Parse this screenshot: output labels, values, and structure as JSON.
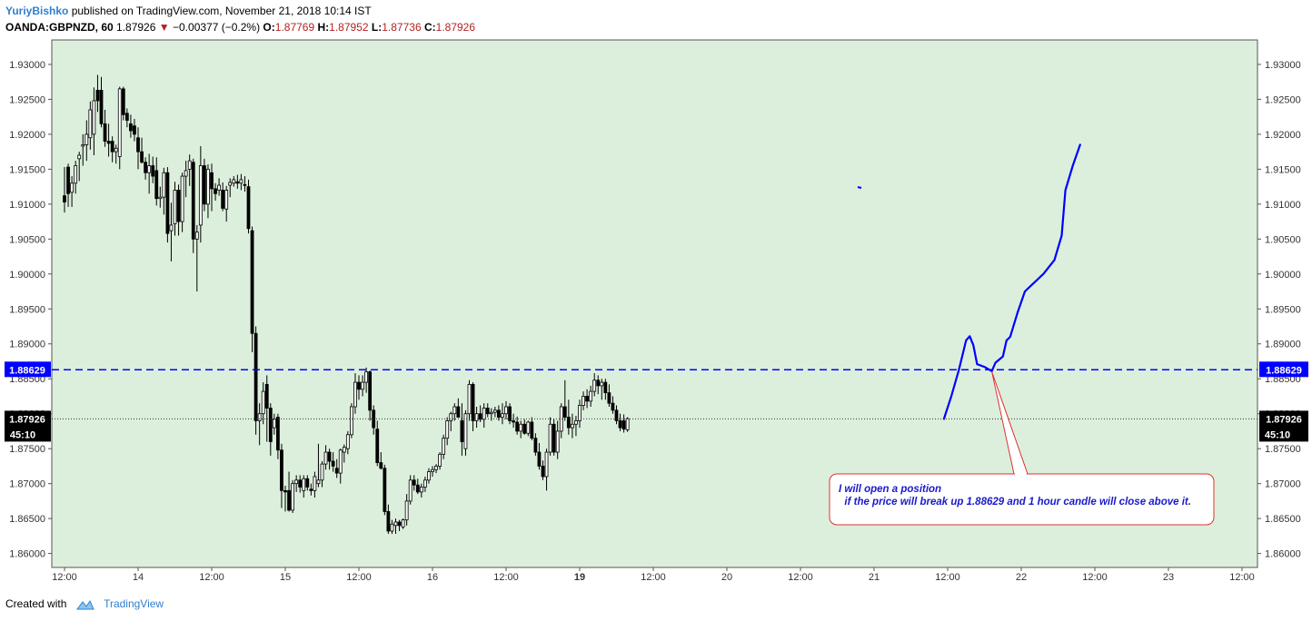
{
  "header": {
    "author": "YuriyBishko",
    "published_text": "published on TradingView.com, November 21, 2018 10:14 IST",
    "symbol": "OANDA:GBPNZD, 60",
    "last": "1.87926",
    "change": "−0.00377 (−0.2%)",
    "o_label": "O:",
    "o": "1.87769",
    "h_label": "H:",
    "h": "1.87952",
    "l_label": "L:",
    "l": "1.87736",
    "c_label": "C:",
    "c": "1.87926"
  },
  "footer": {
    "created_with": "Created with",
    "brand": "TradingView"
  },
  "colors": {
    "plot_bg": "#dcefdc",
    "level_line": "#0000ff",
    "price_tag": "#000000",
    "level_tag": "#0000ff",
    "arrow": "#e03030",
    "note_text": "#1a1acc"
  },
  "chart_data": {
    "type": "candlestick",
    "ylim": [
      1.858,
      1.9335
    ],
    "y_ticks": [
      "1.93000",
      "1.92500",
      "1.92000",
      "1.91500",
      "1.91000",
      "1.90500",
      "1.90000",
      "1.89500",
      "1.89000",
      "1.88500",
      "1.88000",
      "1.87500",
      "1.87000",
      "1.86500",
      "1.86000"
    ],
    "y_tick_values": [
      1.93,
      1.925,
      1.92,
      1.915,
      1.91,
      1.905,
      1.9,
      1.895,
      1.89,
      1.885,
      1.88,
      1.875,
      1.87,
      1.865,
      1.86
    ],
    "x_ticks": [
      "12:00",
      "14",
      "12:00",
      "15",
      "12:00",
      "16",
      "12:00",
      "19",
      "12:00",
      "20",
      "12:00",
      "21",
      "12:00",
      "22",
      "12:00",
      "23",
      "12:00"
    ],
    "x_tick_bars": [
      0,
      20,
      40,
      60,
      80,
      100,
      120,
      140,
      160,
      180,
      200,
      220,
      240,
      260,
      280,
      300,
      320
    ],
    "bold_x_ticks": [
      "19"
    ],
    "level": {
      "value": 1.88629,
      "label": "1.88629",
      "style": "dashed"
    },
    "current_price": {
      "value": 1.87926,
      "label": "1.87926",
      "countdown": "45:10",
      "style": "dotted"
    },
    "annotation": "I will open a position\n  if the price will break up 1.88629 and 1 hour candle will close above it.",
    "projection_path": [
      [
        239,
        1.87926
      ],
      [
        241,
        1.8825
      ],
      [
        243,
        1.8862
      ],
      [
        245,
        1.8905
      ],
      [
        246,
        1.8911
      ],
      [
        247,
        1.8898
      ],
      [
        248,
        1.8871
      ],
      [
        250,
        1.8867
      ],
      [
        252,
        1.8861
      ],
      [
        253,
        1.8873
      ],
      [
        255,
        1.8882
      ],
      [
        256,
        1.8905
      ],
      [
        257,
        1.891
      ],
      [
        259,
        1.8945
      ],
      [
        261,
        1.8975
      ],
      [
        263,
        1.8985
      ],
      [
        266,
        1.9
      ],
      [
        269,
        1.902
      ],
      [
        271,
        1.9055
      ],
      [
        272,
        1.912
      ],
      [
        274,
        1.9155
      ],
      [
        276,
        1.9185
      ]
    ],
    "candles": [
      [
        1.9112,
        1.9153,
        1.9088,
        1.9103
      ],
      [
        1.9153,
        1.9158,
        1.9096,
        1.9115
      ],
      [
        1.9117,
        1.914,
        1.9096,
        1.913
      ],
      [
        1.913,
        1.9162,
        1.9115,
        1.9155
      ],
      [
        1.9165,
        1.9175,
        1.9133,
        1.917
      ],
      [
        1.9183,
        1.92,
        1.9155,
        1.9185
      ],
      [
        1.9185,
        1.922,
        1.9162,
        1.92
      ],
      [
        1.9195,
        1.9247,
        1.9178,
        1.9235
      ],
      [
        1.92,
        1.9267,
        1.917,
        1.9248
      ],
      [
        1.9263,
        1.9285,
        1.9232,
        1.9248
      ],
      [
        1.9263,
        1.9282,
        1.921,
        1.9215
      ],
      [
        1.9215,
        1.9235,
        1.9182,
        1.919
      ],
      [
        1.919,
        1.9215,
        1.9168,
        1.9187
      ],
      [
        1.919,
        1.9197,
        1.916,
        1.9175
      ],
      [
        1.9175,
        1.9185,
        1.9158,
        1.918
      ],
      [
        1.9168,
        1.9268,
        1.915,
        1.9265
      ],
      [
        1.9265,
        1.9268,
        1.922,
        1.9228
      ],
      [
        1.923,
        1.9237,
        1.921,
        1.922
      ],
      [
        1.9215,
        1.9228,
        1.9195,
        1.9205
      ],
      [
        1.9212,
        1.9222,
        1.919,
        1.92
      ],
      [
        1.9195,
        1.921,
        1.915,
        1.9175
      ],
      [
        1.9175,
        1.9195,
        1.9158,
        1.916
      ],
      [
        1.916,
        1.9167,
        1.9135,
        1.9145
      ],
      [
        1.9145,
        1.9172,
        1.9115,
        1.9155
      ],
      [
        1.9155,
        1.9168,
        1.913,
        1.914
      ],
      [
        1.9148,
        1.9167,
        1.9098,
        1.9108
      ],
      [
        1.9108,
        1.9125,
        1.9095,
        1.911
      ],
      [
        1.911,
        1.9152,
        1.9085,
        1.9145
      ],
      [
        1.9145,
        1.9153,
        1.9045,
        1.9058
      ],
      [
        1.9062,
        1.9102,
        1.9018,
        1.907
      ],
      [
        1.9072,
        1.9132,
        1.9055,
        1.912
      ],
      [
        1.912,
        1.9128,
        1.9055,
        1.9075
      ],
      [
        1.9075,
        1.9145,
        1.906,
        1.914
      ],
      [
        1.914,
        1.9162,
        1.911,
        1.9148
      ],
      [
        1.915,
        1.9171,
        1.9126,
        1.9162
      ],
      [
        1.916,
        1.9165,
        1.903,
        1.905
      ],
      [
        1.905,
        1.907,
        1.8975,
        1.906
      ],
      [
        1.907,
        1.9183,
        1.9045,
        1.9155
      ],
      [
        1.9155,
        1.9165,
        1.909,
        1.91
      ],
      [
        1.91,
        1.9157,
        1.908,
        1.915
      ],
      [
        1.9145,
        1.9158,
        1.909,
        1.9122
      ],
      [
        1.9122,
        1.913,
        1.9105,
        1.9115
      ],
      [
        1.912,
        1.9137,
        1.9112,
        1.9127
      ],
      [
        1.912,
        1.9131,
        1.909,
        1.9094
      ],
      [
        1.9093,
        1.9126,
        1.9075,
        1.912
      ],
      [
        1.9127,
        1.9137,
        1.911,
        1.9131
      ],
      [
        1.913,
        1.914,
        1.9125,
        1.9135
      ],
      [
        1.9132,
        1.9142,
        1.9122,
        1.913
      ],
      [
        1.913,
        1.9143,
        1.912,
        1.9135
      ],
      [
        1.9128,
        1.914,
        1.9118,
        1.9127
      ],
      [
        1.9125,
        1.9135,
        1.9058,
        1.9065
      ],
      [
        1.9062,
        1.9068,
        1.8888,
        1.8915
      ],
      [
        1.8915,
        1.8925,
        1.877,
        1.879
      ],
      [
        1.879,
        1.8815,
        1.8755,
        1.88
      ],
      [
        1.88,
        1.8845,
        1.8785,
        1.8832
      ],
      [
        1.8842,
        1.8855,
        1.876,
        1.8808
      ],
      [
        1.8808,
        1.8815,
        1.874,
        1.876
      ],
      [
        1.878,
        1.88,
        1.877,
        1.8792
      ],
      [
        1.8795,
        1.88,
        1.8735,
        1.8748
      ],
      [
        1.8748,
        1.8757,
        1.8665,
        1.869
      ],
      [
        1.869,
        1.8697,
        1.866,
        1.8688
      ],
      [
        1.869,
        1.8717,
        1.866,
        1.8662
      ],
      [
        1.8662,
        1.8705,
        1.8658,
        1.87
      ],
      [
        1.87,
        1.8712,
        1.8688,
        1.8705
      ],
      [
        1.8705,
        1.8712,
        1.8687,
        1.8695
      ],
      [
        1.869,
        1.8712,
        1.868,
        1.8707
      ],
      [
        1.8707,
        1.8712,
        1.869,
        1.8695
      ],
      [
        1.8692,
        1.87,
        1.8683,
        1.869
      ],
      [
        1.869,
        1.8717,
        1.868,
        1.871
      ],
      [
        1.87,
        1.8757,
        1.8695,
        1.8705
      ],
      [
        1.8705,
        1.8732,
        1.8695,
        1.8728
      ],
      [
        1.8728,
        1.8755,
        1.872,
        1.8745
      ],
      [
        1.8745,
        1.875,
        1.872,
        1.8732
      ],
      [
        1.8732,
        1.8745,
        1.8717,
        1.8725
      ],
      [
        1.8722,
        1.8735,
        1.8708,
        1.8715
      ],
      [
        1.8715,
        1.875,
        1.87,
        1.8748
      ],
      [
        1.8745,
        1.8756,
        1.873,
        1.8752
      ],
      [
        1.875,
        1.8775,
        1.8742,
        1.877
      ],
      [
        1.877,
        1.8815,
        1.8765,
        1.881
      ],
      [
        1.881,
        1.8858,
        1.88,
        1.8845
      ],
      [
        1.8845,
        1.8855,
        1.882,
        1.8835
      ],
      [
        1.8835,
        1.8855,
        1.8825,
        1.8845
      ],
      [
        1.8845,
        1.8866,
        1.883,
        1.886
      ],
      [
        1.886,
        1.8862,
        1.879,
        1.8805
      ],
      [
        1.8805,
        1.8812,
        1.877,
        1.878
      ],
      [
        1.8778,
        1.879,
        1.8725,
        1.873
      ],
      [
        1.873,
        1.8745,
        1.872,
        1.8722
      ],
      [
        1.8722,
        1.8727,
        1.8655,
        1.866
      ],
      [
        1.866,
        1.867,
        1.8628,
        1.8632
      ],
      [
        1.8632,
        1.8648,
        1.8628,
        1.8642
      ],
      [
        1.864,
        1.865,
        1.8628,
        1.8645
      ],
      [
        1.8645,
        1.8648,
        1.8632,
        1.864
      ],
      [
        1.8638,
        1.865,
        1.8635,
        1.8648
      ],
      [
        1.8648,
        1.8685,
        1.864,
        1.8675
      ],
      [
        1.8675,
        1.8712,
        1.867,
        1.8705
      ],
      [
        1.8705,
        1.8712,
        1.869,
        1.8698
      ],
      [
        1.8698,
        1.8707,
        1.8685,
        1.8688
      ],
      [
        1.8688,
        1.87,
        1.868,
        1.8695
      ],
      [
        1.8695,
        1.871,
        1.8688,
        1.8705
      ],
      [
        1.8705,
        1.8722,
        1.87,
        1.8717
      ],
      [
        1.8717,
        1.8725,
        1.871,
        1.872
      ],
      [
        1.872,
        1.8728,
        1.8715,
        1.8725
      ],
      [
        1.8725,
        1.8745,
        1.872,
        1.8742
      ],
      [
        1.8742,
        1.877,
        1.8735,
        1.8765
      ],
      [
        1.8765,
        1.8795,
        1.8755,
        1.879
      ],
      [
        1.879,
        1.8803,
        1.8775,
        1.88
      ],
      [
        1.88,
        1.8815,
        1.879,
        1.881
      ],
      [
        1.881,
        1.8822,
        1.8795,
        1.8795
      ],
      [
        1.879,
        1.8815,
        1.874,
        1.876
      ],
      [
        1.875,
        1.8805,
        1.874,
        1.88
      ],
      [
        1.88,
        1.8848,
        1.879,
        1.8842
      ],
      [
        1.8842,
        1.8845,
        1.8775,
        1.879
      ],
      [
        1.879,
        1.881,
        1.878,
        1.88
      ],
      [
        1.88,
        1.8812,
        1.8788,
        1.8792
      ],
      [
        1.8792,
        1.8815,
        1.878,
        1.8808
      ],
      [
        1.8808,
        1.8815,
        1.8795,
        1.88
      ],
      [
        1.88,
        1.8808,
        1.879,
        1.8802
      ],
      [
        1.8802,
        1.881,
        1.8795,
        1.8805
      ],
      [
        1.8805,
        1.8812,
        1.879,
        1.8795
      ],
      [
        1.8795,
        1.8815,
        1.8785,
        1.88
      ],
      [
        1.88,
        1.8818,
        1.8792,
        1.881
      ],
      [
        1.881,
        1.8815,
        1.8785,
        1.879
      ],
      [
        1.879,
        1.88,
        1.878,
        1.8788
      ],
      [
        1.8788,
        1.8796,
        1.877,
        1.8775
      ],
      [
        1.8775,
        1.879,
        1.8765,
        1.8785
      ],
      [
        1.8785,
        1.8792,
        1.877,
        1.8772
      ],
      [
        1.8772,
        1.879,
        1.8768,
        1.8788
      ],
      [
        1.8788,
        1.8795,
        1.8762,
        1.8765
      ],
      [
        1.8765,
        1.8772,
        1.874,
        1.8745
      ],
      [
        1.8745,
        1.8758,
        1.872,
        1.8725
      ],
      [
        1.8725,
        1.8733,
        1.8705,
        1.871
      ],
      [
        1.871,
        1.875,
        1.869,
        1.8745
      ],
      [
        1.8745,
        1.8795,
        1.874,
        1.8785
      ],
      [
        1.8785,
        1.8792,
        1.874,
        1.8745
      ],
      [
        1.8745,
        1.879,
        1.8735,
        1.8775
      ],
      [
        1.8775,
        1.8815,
        1.8765,
        1.881
      ],
      [
        1.881,
        1.8848,
        1.879,
        1.8795
      ],
      [
        1.8795,
        1.882,
        1.877,
        1.878
      ],
      [
        1.878,
        1.88,
        1.8765,
        1.8785
      ],
      [
        1.8785,
        1.8797,
        1.8768,
        1.879
      ],
      [
        1.879,
        1.882,
        1.878,
        1.8812
      ],
      [
        1.8812,
        1.8832,
        1.8805,
        1.8825
      ],
      [
        1.8825,
        1.8835,
        1.8808,
        1.8818
      ],
      [
        1.8818,
        1.884,
        1.881,
        1.8832
      ],
      [
        1.8832,
        1.8858,
        1.8825,
        1.8848
      ],
      [
        1.8848,
        1.8855,
        1.8828,
        1.884
      ],
      [
        1.884,
        1.885,
        1.882,
        1.8845
      ],
      [
        1.8845,
        1.885,
        1.882,
        1.883
      ],
      [
        1.883,
        1.8842,
        1.881,
        1.8815
      ],
      [
        1.8815,
        1.8825,
        1.88,
        1.8805
      ],
      [
        1.8805,
        1.8812,
        1.8785,
        1.879
      ],
      [
        1.879,
        1.88,
        1.8775,
        1.878
      ],
      [
        1.879,
        1.8799,
        1.8773,
        1.8778
      ],
      [
        1.8777,
        1.8795,
        1.8774,
        1.8793
      ]
    ]
  }
}
